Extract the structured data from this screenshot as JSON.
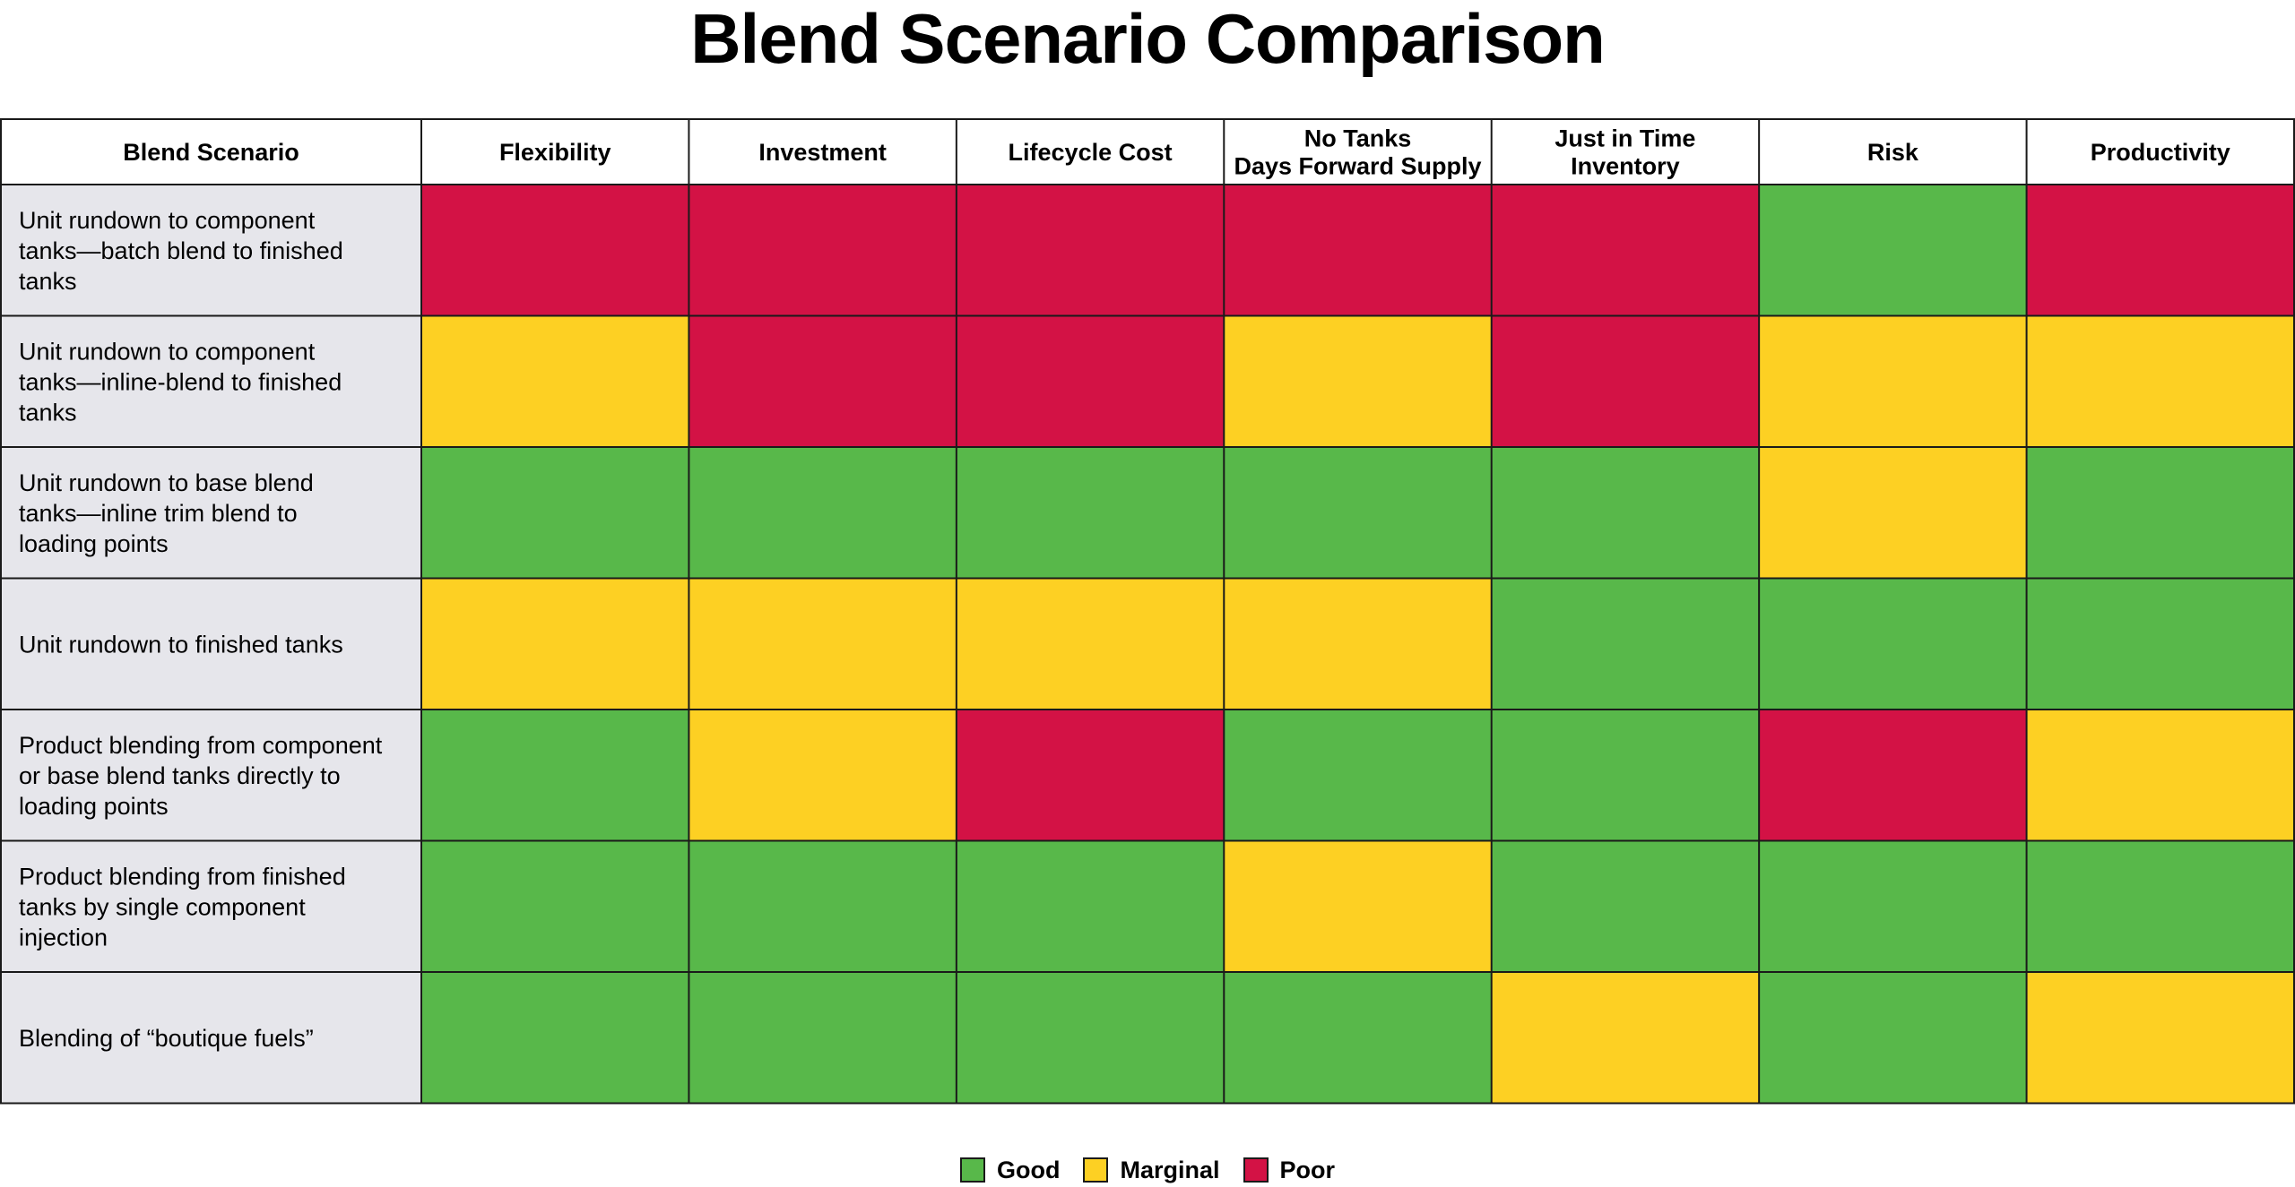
{
  "chart_data": {
    "type": "heatmap",
    "title": "Blend Scenario Comparison",
    "row_header": "Blend Scenario",
    "columns": [
      "Flexibility",
      "Investment",
      "Lifecycle Cost",
      "No Tanks\nDays Forward Supply",
      "Just in Time\nInventory",
      "Risk",
      "Productivity"
    ],
    "rows": [
      "Unit rundown to component tanks—batch blend to finished tanks",
      "Unit rundown to component tanks—inline-blend to finished tanks",
      "Unit rundown to base blend tanks—inline trim blend to loading points",
      "Unit rundown to finished tanks",
      "Product blending from component or base blend tanks directly to loading points",
      "Product blending from finished tanks by single component injection",
      "Blending of “boutique fuels”"
    ],
    "ratings": [
      [
        "Poor",
        "Poor",
        "Poor",
        "Poor",
        "Poor",
        "Good",
        "Poor"
      ],
      [
        "Marginal",
        "Poor",
        "Poor",
        "Marginal",
        "Poor",
        "Marginal",
        "Marginal"
      ],
      [
        "Good",
        "Good",
        "Good",
        "Good",
        "Good",
        "Marginal",
        "Good"
      ],
      [
        "Marginal",
        "Marginal",
        "Marginal",
        "Marginal",
        "Good",
        "Good",
        "Good"
      ],
      [
        "Good",
        "Marginal",
        "Poor",
        "Good",
        "Good",
        "Poor",
        "Marginal"
      ],
      [
        "Good",
        "Good",
        "Good",
        "Marginal",
        "Good",
        "Good",
        "Good"
      ],
      [
        "Good",
        "Good",
        "Good",
        "Good",
        "Marginal",
        "Good",
        "Marginal"
      ]
    ],
    "legend": [
      {
        "label": "Good",
        "color": "#58b84a"
      },
      {
        "label": "Marginal",
        "color": "#fdd023"
      },
      {
        "label": "Poor",
        "color": "#d31245"
      }
    ],
    "colors": {
      "row_label_background": "#e6e6eb",
      "header_background": "#ffffff",
      "grid_line": "#1a1a1a"
    }
  }
}
